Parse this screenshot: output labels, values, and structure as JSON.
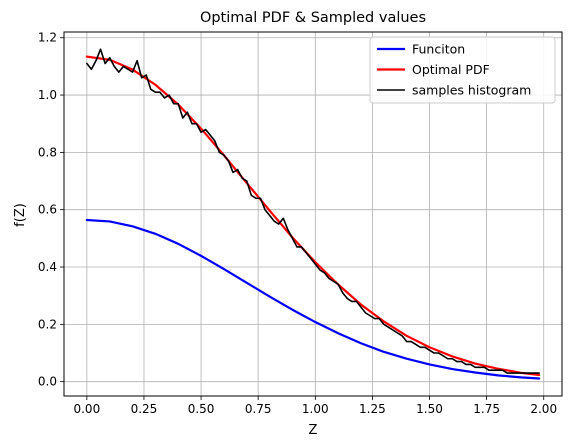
{
  "chart_data": {
    "type": "line",
    "title": "Optimal PDF & Sampled values",
    "xlabel": "Z",
    "ylabel": "f(Z)",
    "xlim": [
      -0.1,
      2.08
    ],
    "ylim": [
      -0.05,
      1.22
    ],
    "xticks": [
      "0.00",
      "0.25",
      "0.50",
      "0.75",
      "1.00",
      "1.25",
      "1.50",
      "1.75",
      "2.00"
    ],
    "yticks": [
      "0.0",
      "0.2",
      "0.4",
      "0.6",
      "0.8",
      "1.0",
      "1.2"
    ],
    "grid": true,
    "legend_position": "top-right",
    "series": [
      {
        "name": "Funciton",
        "color": "#0000ff",
        "x": [
          0.0,
          0.1,
          0.2,
          0.3,
          0.4,
          0.5,
          0.6,
          0.7,
          0.8,
          0.9,
          1.0,
          1.1,
          1.2,
          1.3,
          1.4,
          1.5,
          1.6,
          1.7,
          1.8,
          1.9,
          1.98
        ],
        "y": [
          0.564,
          0.559,
          0.542,
          0.516,
          0.481,
          0.439,
          0.393,
          0.345,
          0.297,
          0.251,
          0.208,
          0.169,
          0.134,
          0.104,
          0.08,
          0.06,
          0.044,
          0.032,
          0.022,
          0.015,
          0.011
        ]
      },
      {
        "name": "Optimal PDF",
        "color": "#ff0000",
        "x": [
          0.0,
          0.1,
          0.2,
          0.3,
          0.4,
          0.5,
          0.6,
          0.7,
          0.8,
          0.9,
          1.0,
          1.1,
          1.2,
          1.3,
          1.4,
          1.5,
          1.6,
          1.7,
          1.8,
          1.9,
          1.98
        ],
        "y": [
          1.134,
          1.123,
          1.089,
          1.036,
          0.967,
          0.883,
          0.79,
          0.693,
          0.597,
          0.503,
          0.417,
          0.339,
          0.269,
          0.21,
          0.16,
          0.12,
          0.088,
          0.063,
          0.045,
          0.031,
          0.023
        ]
      },
      {
        "name": "samples histogram",
        "color": "#000000",
        "x": [
          0.0,
          0.02,
          0.04,
          0.06,
          0.08,
          0.1,
          0.12,
          0.14,
          0.16,
          0.18,
          0.2,
          0.22,
          0.24,
          0.26,
          0.28,
          0.3,
          0.32,
          0.34,
          0.36,
          0.38,
          0.4,
          0.42,
          0.44,
          0.46,
          0.48,
          0.5,
          0.52,
          0.54,
          0.56,
          0.58,
          0.6,
          0.62,
          0.64,
          0.66,
          0.68,
          0.7,
          0.72,
          0.74,
          0.76,
          0.78,
          0.8,
          0.82,
          0.84,
          0.86,
          0.88,
          0.9,
          0.92,
          0.94,
          0.96,
          0.98,
          1.0,
          1.02,
          1.04,
          1.06,
          1.08,
          1.1,
          1.12,
          1.14,
          1.16,
          1.18,
          1.2,
          1.22,
          1.24,
          1.26,
          1.28,
          1.3,
          1.32,
          1.34,
          1.36,
          1.38,
          1.4,
          1.42,
          1.44,
          1.46,
          1.48,
          1.5,
          1.52,
          1.54,
          1.56,
          1.58,
          1.6,
          1.62,
          1.64,
          1.66,
          1.68,
          1.7,
          1.72,
          1.74,
          1.76,
          1.78,
          1.8,
          1.82,
          1.84,
          1.86,
          1.88,
          1.9,
          1.92,
          1.94,
          1.96,
          1.98
        ],
        "y": [
          1.11,
          1.09,
          1.12,
          1.16,
          1.11,
          1.13,
          1.1,
          1.08,
          1.1,
          1.09,
          1.08,
          1.12,
          1.06,
          1.07,
          1.02,
          1.01,
          1.01,
          0.99,
          1.0,
          0.97,
          0.97,
          0.92,
          0.94,
          0.9,
          0.9,
          0.87,
          0.88,
          0.86,
          0.84,
          0.8,
          0.79,
          0.77,
          0.73,
          0.74,
          0.71,
          0.7,
          0.65,
          0.64,
          0.64,
          0.6,
          0.58,
          0.56,
          0.55,
          0.57,
          0.53,
          0.5,
          0.47,
          0.47,
          0.45,
          0.43,
          0.41,
          0.39,
          0.38,
          0.36,
          0.35,
          0.34,
          0.31,
          0.29,
          0.28,
          0.28,
          0.26,
          0.24,
          0.23,
          0.22,
          0.22,
          0.2,
          0.19,
          0.18,
          0.17,
          0.16,
          0.14,
          0.14,
          0.13,
          0.12,
          0.12,
          0.11,
          0.1,
          0.1,
          0.09,
          0.08,
          0.08,
          0.07,
          0.07,
          0.06,
          0.06,
          0.05,
          0.05,
          0.05,
          0.04,
          0.04,
          0.04,
          0.04,
          0.03,
          0.03,
          0.03,
          0.03,
          0.03,
          0.03,
          0.03,
          0.03
        ]
      }
    ]
  }
}
